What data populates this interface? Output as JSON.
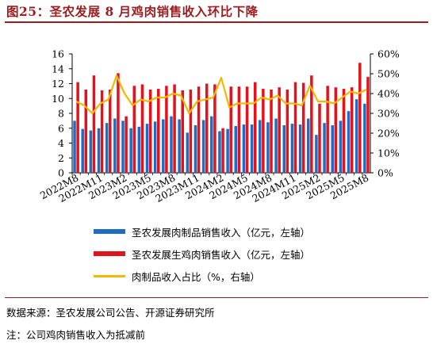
{
  "title": "图25：圣农发展 8 月鸡肉销售收入环比下降",
  "source": "数据来源：圣农发展公司公告、开源证券研究所",
  "note": "注：公司鸡肉销售收入为抵减前",
  "colors": {
    "title": "#9b1d20",
    "blue": "#1f6cc3",
    "red": "#e3121b",
    "yellow": "#f5b800"
  },
  "legend": [
    {
      "label": "圣农发展肉制品销售收入（亿元，左轴）",
      "color": "#1f6cc3",
      "kind": "bar"
    },
    {
      "label": "圣农发展生鸡肉销售收入（亿元，左轴）",
      "color": "#e3121b",
      "kind": "bar"
    },
    {
      "label": "肉制品收入占比（%，右轴）",
      "color": "#f5b800",
      "kind": "line"
    }
  ],
  "chart_data": {
    "type": "bar",
    "categories": [
      "2022M8",
      "2022M9",
      "2022M10",
      "2022M11",
      "2022M12",
      "2023M1",
      "2023M2",
      "2023M3",
      "2023M4",
      "2023M5",
      "2023M6",
      "2023M7",
      "2023M8",
      "2023M9",
      "2023M10",
      "2023M11",
      "2023M12",
      "2024M1",
      "2024M2",
      "2024M3",
      "2024M4",
      "2024M5",
      "2024M6",
      "2024M7",
      "2024M8",
      "2024M9",
      "2024M10",
      "2024M11",
      "2024M12",
      "2025M1",
      "2025M2",
      "2025M3",
      "2025M4",
      "2025M5",
      "2025M6",
      "2025M7",
      "2025M8"
    ],
    "x_tick_labels": [
      "2022M8",
      "2022M11",
      "2023M2",
      "2023M5",
      "2023M8",
      "2023M11",
      "2024M2",
      "2024M5",
      "2024M8",
      "2024M11",
      "2025M2",
      "2025M5",
      "2025M8"
    ],
    "series": [
      {
        "name": "圣农发展肉制品销售收入（亿元，左轴）",
        "axis": "left",
        "type": "bar",
        "values": [
          7.0,
          5.9,
          5.7,
          6.0,
          6.7,
          7.3,
          7.0,
          6.0,
          6.2,
          6.6,
          6.9,
          7.2,
          7.6,
          7.2,
          5.4,
          6.4,
          7.1,
          7.6,
          5.6,
          5.9,
          6.3,
          6.5,
          6.5,
          7.1,
          6.8,
          7.3,
          6.4,
          6.6,
          6.5,
          7.3,
          5.1,
          6.7,
          6.4,
          7.0,
          8.3,
          9.9,
          9.3
        ]
      },
      {
        "name": "圣农发展生鸡肉销售收入（亿元，左轴）",
        "axis": "left",
        "type": "bar",
        "values": [
          12.2,
          11.2,
          13.1,
          11.1,
          11.2,
          13.4,
          7.6,
          11.7,
          11.9,
          11.2,
          11.3,
          11.7,
          11.9,
          11.1,
          11.2,
          11.6,
          12.0,
          11.9,
          6.0,
          11.6,
          11.6,
          11.6,
          12.2,
          11.3,
          11.2,
          11.5,
          11.2,
          12.2,
          12.1,
          13.1,
          9.3,
          11.7,
          11.5,
          11.3,
          11.5,
          14.8,
          12.9
        ]
      },
      {
        "name": "肉制品收入占比（%，右轴）",
        "axis": "right",
        "type": "line",
        "values": [
          36,
          34,
          30,
          35,
          37,
          49,
          40,
          34,
          37,
          36,
          38,
          38,
          40,
          39,
          30,
          36,
          37,
          38,
          48,
          33,
          35,
          35,
          35,
          38,
          37,
          39,
          35,
          35,
          34,
          44,
          36,
          36,
          35,
          38,
          41,
          40,
          42
        ]
      }
    ],
    "left_axis": {
      "ylim": [
        0,
        16
      ],
      "ticks": [
        "0",
        "2",
        "4",
        "6",
        "8",
        "10",
        "12",
        "14",
        "16"
      ]
    },
    "right_axis": {
      "ylim": [
        0,
        60
      ],
      "ticks": [
        "0%",
        "10%",
        "20%",
        "30%",
        "40%",
        "50%",
        "60%"
      ]
    },
    "grid": false,
    "legend_position": "bottom"
  }
}
